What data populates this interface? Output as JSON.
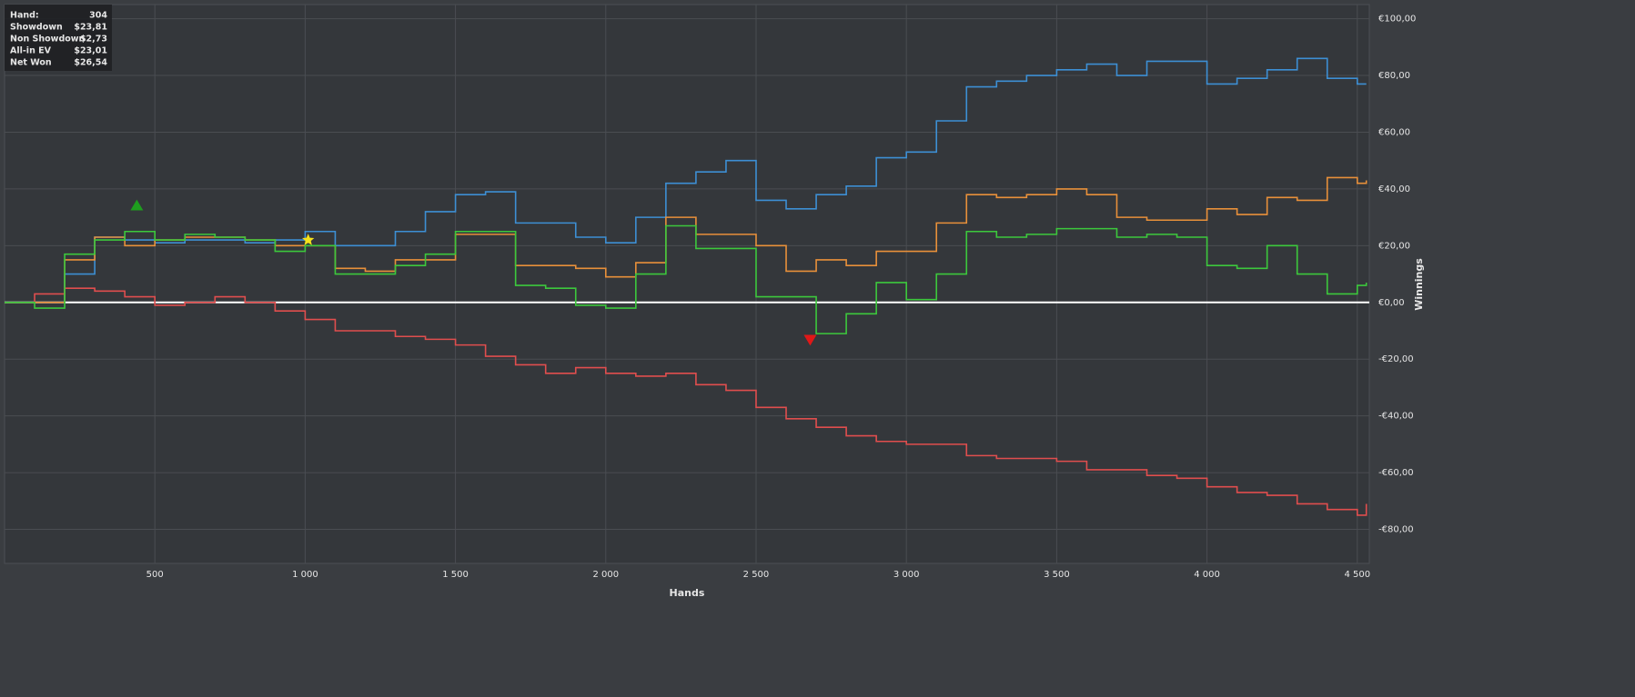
{
  "chart_data": {
    "type": "line",
    "line_style": "step",
    "x_label": "Hands",
    "y_label": "Winnings",
    "x": [
      0,
      100,
      200,
      300,
      400,
      500,
      600,
      700,
      800,
      900,
      1000,
      1100,
      1200,
      1300,
      1400,
      1500,
      1600,
      1700,
      1800,
      1900,
      2000,
      2100,
      2200,
      2300,
      2400,
      2500,
      2600,
      2700,
      2800,
      2900,
      3000,
      3100,
      3200,
      3300,
      3400,
      3500,
      3600,
      3700,
      3800,
      3900,
      4000,
      4100,
      4200,
      4300,
      4400,
      4500,
      4530
    ],
    "series": [
      {
        "color": "#3d8fd4",
        "values": [
          0,
          0,
          10,
          23,
          22,
          21,
          22,
          22,
          21,
          22,
          25,
          20,
          20,
          25,
          32,
          38,
          39,
          28,
          28,
          23,
          21,
          30,
          42,
          46,
          50,
          36,
          33,
          38,
          41,
          51,
          53,
          64,
          76,
          78,
          80,
          82,
          84,
          80,
          85,
          85,
          77,
          79,
          82,
          86,
          79,
          77,
          77
        ]
      },
      {
        "color": "#e8903a",
        "values": [
          0,
          0,
          15,
          23,
          20,
          22,
          23,
          23,
          22,
          20,
          20,
          12,
          11,
          15,
          15,
          24,
          24,
          13,
          13,
          12,
          9,
          14,
          30,
          24,
          24,
          20,
          11,
          15,
          13,
          18,
          18,
          28,
          38,
          37,
          38,
          40,
          38,
          30,
          29,
          29,
          33,
          31,
          37,
          36,
          44,
          42,
          43
        ]
      },
      {
        "color": "#e04e4e",
        "values": [
          0,
          3,
          5,
          4,
          2,
          -1,
          0,
          2,
          0,
          -3,
          -6,
          -10,
          -10,
          -12,
          -13,
          -15,
          -19,
          -22,
          -25,
          -23,
          -25,
          -26,
          -25,
          -29,
          -31,
          -37,
          -41,
          -44,
          -47,
          -49,
          -50,
          -50,
          -54,
          -55,
          -55,
          -56,
          -59,
          -59,
          -61,
          -62,
          -65,
          -67,
          -68,
          -71,
          -73,
          -75,
          -71
        ]
      },
      {
        "color": "#3cc83c",
        "values": [
          0,
          -2,
          17,
          22,
          25,
          22,
          24,
          23,
          22,
          18,
          20,
          10,
          10,
          13,
          17,
          25,
          25,
          6,
          5,
          -1,
          -2,
          10,
          27,
          19,
          19,
          2,
          2,
          -11,
          -4,
          7,
          1,
          10,
          25,
          23,
          24,
          26,
          26,
          23,
          24,
          23,
          13,
          12,
          20,
          10,
          3,
          6,
          7
        ]
      }
    ],
    "markers": [
      {
        "x": 440,
        "y": 34,
        "shape": "triangle-up",
        "color": "#1e9e1e"
      },
      {
        "x": 1010,
        "y": 22,
        "shape": "star",
        "color": "#f5e21b"
      },
      {
        "x": 2680,
        "y": -13,
        "shape": "triangle-down",
        "color": "#e01818"
      }
    ],
    "xlim": [
      0,
      4540
    ],
    "ylim": [
      -92,
      105
    ],
    "xticks": [
      500,
      {
        "value": 1000,
        "label": "1 000"
      },
      {
        "value": 1500,
        "label": "1 500"
      },
      {
        "value": 2000,
        "label": "2 000"
      },
      {
        "value": 2500,
        "label": "2 500"
      },
      {
        "value": 3000,
        "label": "3 000"
      },
      {
        "value": 3500,
        "label": "3 500"
      },
      {
        "value": 4000,
        "label": "4 000"
      },
      {
        "value": 4500,
        "label": "4 500"
      }
    ],
    "yticks": [
      {
        "value": 100,
        "label": "€100,00"
      },
      {
        "value": 80,
        "label": "€80,00"
      },
      {
        "value": 60,
        "label": "€60,00"
      },
      {
        "value": 40,
        "label": "€40,00"
      },
      {
        "value": 20,
        "label": "€20,00"
      },
      {
        "value": 0,
        "label": "€0,00"
      },
      {
        "value": -20,
        "label": "-€20,00"
      },
      {
        "value": -40,
        "label": "-€40,00"
      },
      {
        "value": -60,
        "label": "-€60,00"
      },
      {
        "value": -80,
        "label": "-€80,00"
      }
    ],
    "grid": true,
    "zero_line": true,
    "stats_box": [
      {
        "label": "Hand:",
        "value": "304"
      },
      {
        "label": "Showdown",
        "value": "$23,81"
      },
      {
        "label": "Non Showdown",
        "value": "$2,73"
      },
      {
        "label": "All-in EV",
        "value": "$23,01"
      },
      {
        "label": "Net Won",
        "value": "$26,54"
      }
    ]
  }
}
